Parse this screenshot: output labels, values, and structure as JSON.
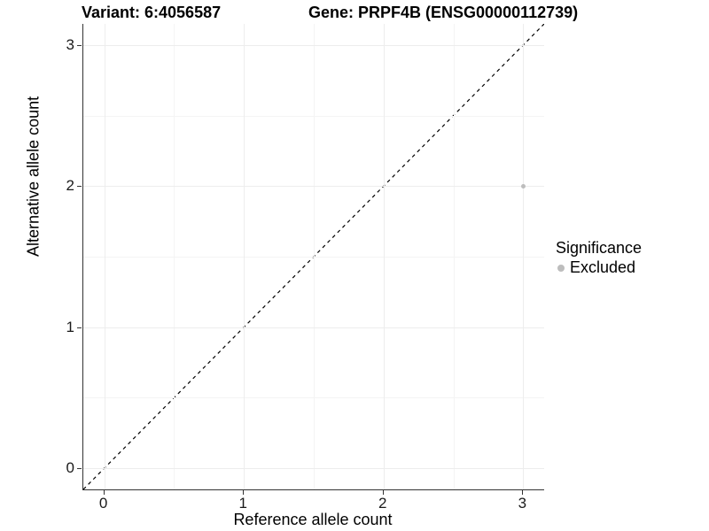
{
  "figure": {
    "title_left": "Variant: 6:4056587",
    "title_right": "Gene: PRPF4B (ENSG00000112739)"
  },
  "chart_data": {
    "type": "scatter",
    "title": "Variant: 6:4056587 | Gene: PRPF4B (ENSG00000112739)",
    "xlabel": "Reference allele count",
    "ylabel": "Alternative allele count",
    "xlim": [
      -0.15,
      3.15
    ],
    "ylim": [
      -0.15,
      3.15
    ],
    "x_ticks": [
      0,
      1,
      2,
      3
    ],
    "y_ticks": [
      0,
      1,
      2,
      3
    ],
    "x_minor_ticks": [
      0.5,
      1.5,
      2.5
    ],
    "y_minor_ticks": [
      0.5,
      1.5,
      2.5
    ],
    "grid": true,
    "series": [
      {
        "name": "Excluded",
        "color": "#bdbdbd",
        "marker": "dot",
        "points": [
          {
            "x": 3,
            "y": 2
          }
        ]
      }
    ],
    "reference_line": {
      "type": "identity",
      "style": "dashed",
      "color": "#000000",
      "from": [
        -0.15,
        -0.15
      ],
      "to": [
        3.15,
        3.15
      ]
    },
    "legend": {
      "title": "Significance",
      "position": "right",
      "items": [
        {
          "label": "Excluded",
          "color": "#bdbdbd",
          "marker": "dot"
        }
      ]
    }
  },
  "colors": {
    "axis_line": "#333333",
    "grid_major": "#ededed",
    "grid_minor": "#f4f4f4",
    "point": "#bdbdbd",
    "text": "#000000"
  }
}
